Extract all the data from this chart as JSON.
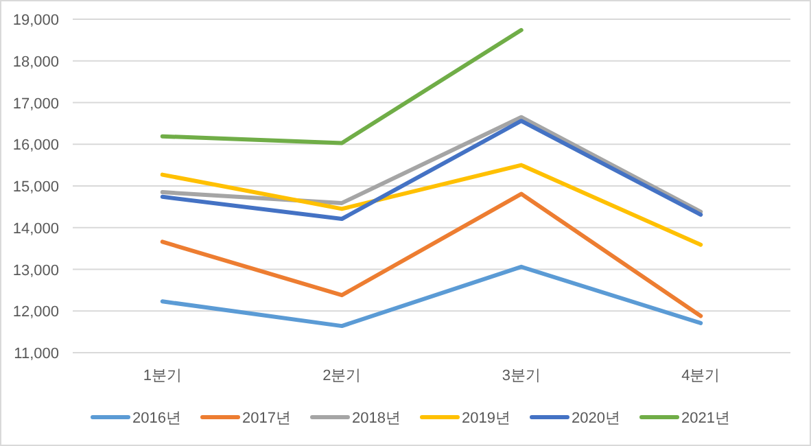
{
  "chart_data": {
    "type": "line",
    "categories": [
      "1분기",
      "2분기",
      "3분기",
      "4분기"
    ],
    "series": [
      {
        "name": "2016년",
        "color": "#5b9bd5",
        "values": [
          12230,
          11640,
          13060,
          11710
        ]
      },
      {
        "name": "2017년",
        "color": "#ed7d31",
        "values": [
          13660,
          12380,
          14810,
          11880
        ]
      },
      {
        "name": "2018년",
        "color": "#a5a5a5",
        "values": [
          14850,
          14590,
          16650,
          14380
        ]
      },
      {
        "name": "2019년",
        "color": "#ffc000",
        "values": [
          15270,
          14450,
          15500,
          13590
        ]
      },
      {
        "name": "2020년",
        "color": "#4472c4",
        "values": [
          14740,
          14210,
          16560,
          14310
        ]
      },
      {
        "name": "2021년",
        "color": "#70ad47",
        "values": [
          16190,
          16030,
          18740,
          null
        ]
      }
    ],
    "ylim": [
      11000,
      19000
    ],
    "yticks": [
      {
        "value": 11000,
        "label": "11,000"
      },
      {
        "value": 12000,
        "label": "12,000"
      },
      {
        "value": 13000,
        "label": "13,000"
      },
      {
        "value": 14000,
        "label": "14,000"
      },
      {
        "value": 15000,
        "label": "15,000"
      },
      {
        "value": 16000,
        "label": "16,000"
      },
      {
        "value": 17000,
        "label": "17,000"
      },
      {
        "value": 18000,
        "label": "18,000"
      },
      {
        "value": 19000,
        "label": "19,000"
      }
    ],
    "grid": "y",
    "legend": "bottom"
  }
}
